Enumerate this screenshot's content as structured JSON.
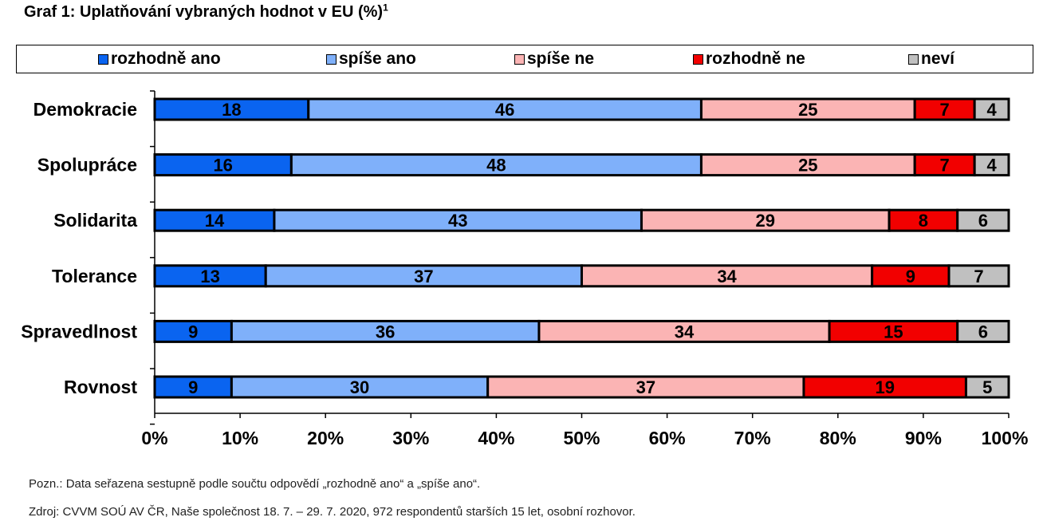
{
  "title": "Graf 1: Uplatňování vybraných hodnot v EU (%)",
  "title_footnote": "1",
  "legend": [
    {
      "label": "rozhodně ano",
      "color": "#0a64f0"
    },
    {
      "label": "spíše ano",
      "color": "#7fb0fa"
    },
    {
      "label": "spíše ne",
      "color": "#fbb4b4"
    },
    {
      "label": "rozhodně ne",
      "color": "#f20000"
    },
    {
      "label": "neví",
      "color": "#c0c0c0"
    }
  ],
  "chart_data": {
    "type": "bar",
    "orientation": "horizontal",
    "stacked": true,
    "categories": [
      "Demokracie",
      "Spolupráce",
      "Solidarita",
      "Tolerance",
      "Spravedlnost",
      "Rovnost"
    ],
    "series": [
      {
        "name": "rozhodně ano",
        "color": "#0a64f0",
        "values": [
          18,
          16,
          14,
          13,
          9,
          9
        ]
      },
      {
        "name": "spíše ano",
        "color": "#7fb0fa",
        "values": [
          46,
          48,
          43,
          37,
          36,
          30
        ]
      },
      {
        "name": "spíše ne",
        "color": "#fbb4b4",
        "values": [
          25,
          25,
          29,
          34,
          34,
          37
        ]
      },
      {
        "name": "rozhodně ne",
        "color": "#f20000",
        "values": [
          7,
          7,
          8,
          9,
          15,
          19
        ]
      },
      {
        "name": "neví",
        "color": "#c0c0c0",
        "values": [
          4,
          4,
          6,
          7,
          6,
          5
        ]
      }
    ],
    "x_ticks": [
      "0%",
      "10%",
      "20%",
      "30%",
      "40%",
      "50%",
      "60%",
      "70%",
      "80%",
      "90%",
      "100%"
    ],
    "xlim": [
      0,
      100
    ],
    "grid": false,
    "legend_position": "top"
  },
  "notes": {
    "pozn": "Pozn.: Data seřazena sestupně podle součtu odpovědí „rozhodně ano“ a „spíše ano“.",
    "zdroj": "Zdroj: CVVM SOÚ AV ČR,  Naše společnost 18. 7. – 29. 7. 2020, 972 respondentů starších 15 let, osobní rozhovor."
  }
}
